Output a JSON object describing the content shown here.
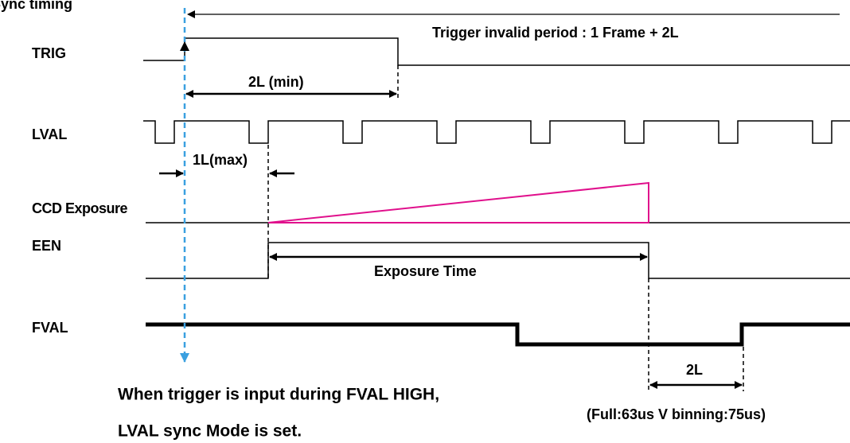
{
  "title": "Sync timing",
  "signals": [
    "TRIG",
    "LVAL",
    "CCD Exposure",
    "EEN",
    "FVAL"
  ],
  "annotations": {
    "trigger_invalid": "Trigger invalid period : 1 Frame + 2L",
    "two_l_min": "2L (min)",
    "one_l_max": "1L(max)",
    "exposure_time": "Exposure Time",
    "two_l": "2L",
    "timing_note": "(Full:63us V binning:75us)",
    "note_line1": "When trigger is input during FVAL HIGH,",
    "note_line2": "LVAL sync Mode is set."
  }
}
